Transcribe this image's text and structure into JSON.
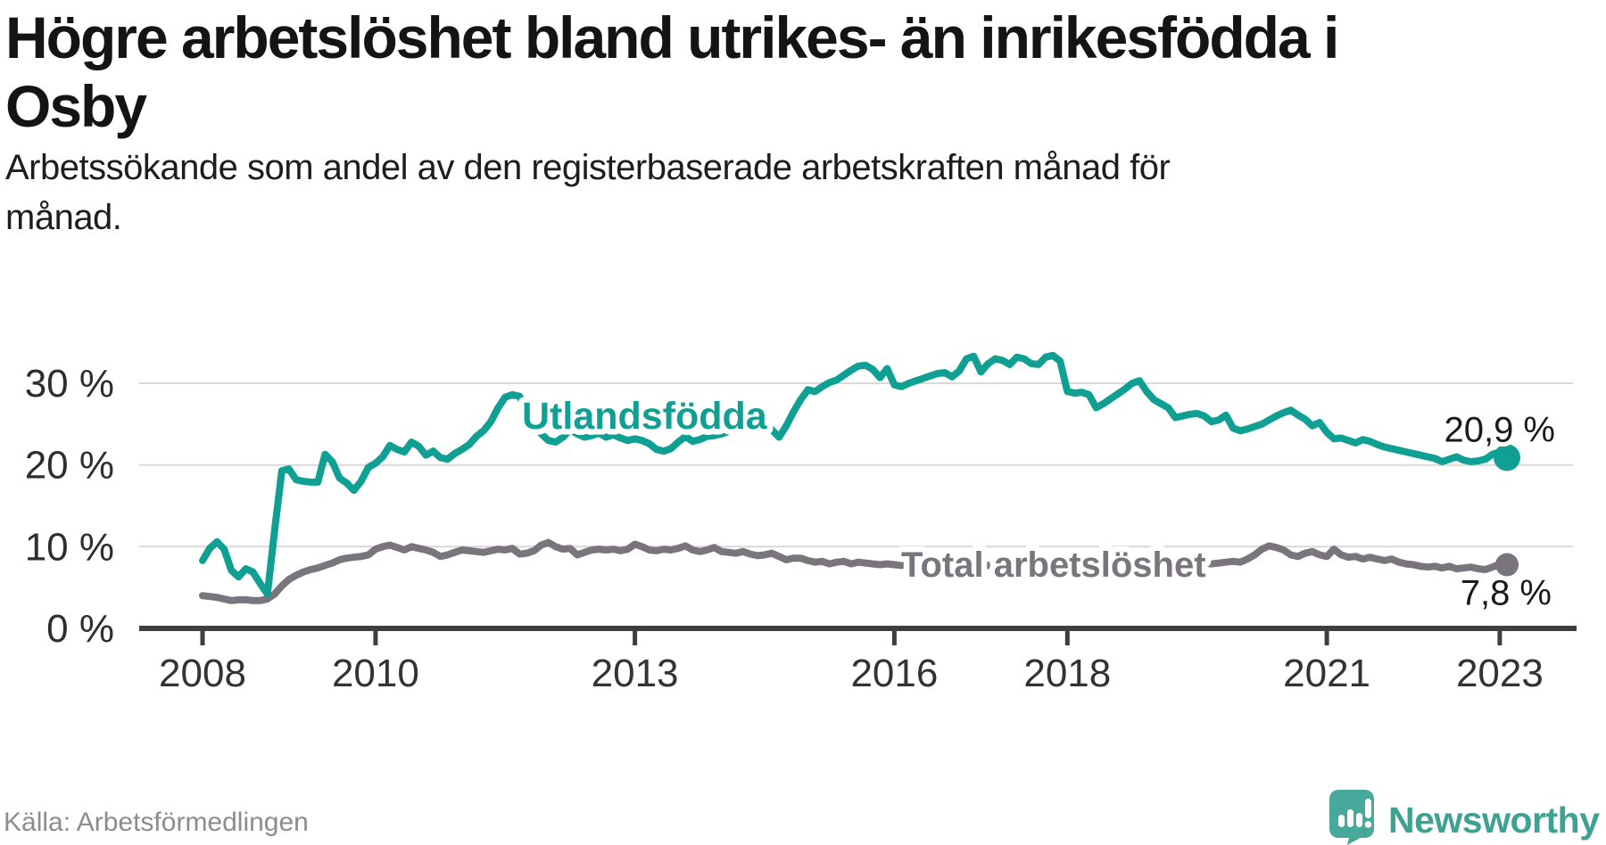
{
  "header": {
    "title_line1": "Högre arbetslöshet bland utrikes- än inrikesfödda i",
    "title_line2": "Osby",
    "subtitle_line1": "Arbetssökande som andel av den registerbaserade arbetskraften månad för",
    "subtitle_line2": "månad."
  },
  "footer": {
    "source": "Källa: Arbetsförmedlingen",
    "brand": "Newsworthy",
    "logo_icon": "bar-chart-exclamation-bubble"
  },
  "colors": {
    "teal": "#10A093",
    "gray": "#7A757C",
    "axis": "#3E3E3E",
    "grid": "#D9D9D9",
    "value_text": "#1A1A1A",
    "axis_text": "#333333",
    "muted": "#8C8C8C",
    "logo_teal": "#46A99B",
    "logo_tail": "#2E887B"
  },
  "chart_data": {
    "type": "line",
    "title": "Högre arbetslöshet bland utrikes- än inrikesfödda i Osby",
    "subtitle": "Arbetssökande som andel av den registerbaserade arbetskraften månad för månad.",
    "source": "Källa: Arbetsförmedlingen",
    "frequency": "monthly",
    "x_start": "2008-01",
    "x_end": "2023-02",
    "ylim": [
      0,
      34
    ],
    "grid": "horizontal-only",
    "legend": "inline-labels",
    "y_unit": "%",
    "y_ticks": [
      {
        "value": 0,
        "label": "0 %"
      },
      {
        "value": 10,
        "label": "10 %"
      },
      {
        "value": 20,
        "label": "20 %"
      },
      {
        "value": 30,
        "label": "30 %"
      }
    ],
    "x_ticks": [
      {
        "month_index": 0,
        "label": "2008"
      },
      {
        "month_index": 24,
        "label": "2010"
      },
      {
        "month_index": 60,
        "label": "2013"
      },
      {
        "month_index": 96,
        "label": "2016"
      },
      {
        "month_index": 120,
        "label": "2018"
      },
      {
        "month_index": 156,
        "label": "2021"
      },
      {
        "month_index": 180,
        "label": "2023"
      }
    ],
    "series": [
      {
        "name": "Total arbetslöshet",
        "color": "#7A757C",
        "end_label": "7,8 %",
        "end_value": 7.8,
        "values": [
          4.0,
          3.9,
          3.8,
          3.6,
          3.4,
          3.5,
          3.5,
          3.4,
          3.4,
          3.6,
          4.2,
          5.2,
          6.0,
          6.5,
          6.9,
          7.2,
          7.4,
          7.7,
          8.0,
          8.4,
          8.6,
          8.7,
          8.8,
          9.0,
          9.7,
          10.0,
          10.2,
          9.9,
          9.6,
          10.0,
          9.8,
          9.6,
          9.3,
          8.8,
          9.0,
          9.3,
          9.6,
          9.5,
          9.4,
          9.3,
          9.5,
          9.7,
          9.6,
          9.8,
          9.1,
          9.2,
          9.5,
          10.2,
          10.5,
          10.0,
          9.7,
          9.8,
          9.0,
          9.3,
          9.6,
          9.7,
          9.6,
          9.7,
          9.5,
          9.7,
          10.3,
          10.0,
          9.6,
          9.5,
          9.7,
          9.6,
          9.8,
          10.1,
          9.6,
          9.4,
          9.6,
          9.9,
          9.4,
          9.3,
          9.2,
          9.4,
          9.1,
          8.9,
          9.0,
          9.2,
          8.8,
          8.4,
          8.6,
          8.6,
          8.3,
          8.1,
          8.2,
          7.9,
          8.1,
          8.2,
          7.9,
          8.1,
          8.0,
          7.9,
          7.8,
          7.9,
          7.8,
          7.7,
          7.9,
          7.8,
          7.6,
          7.7,
          7.9,
          7.8,
          7.7,
          7.8,
          7.6,
          7.8,
          7.9,
          7.7,
          7.6,
          7.7,
          7.5,
          7.6,
          7.8,
          7.6,
          7.5,
          7.6,
          7.4,
          7.6,
          7.5,
          7.4,
          7.3,
          7.4,
          7.2,
          7.3,
          7.5,
          7.4,
          7.3,
          7.5,
          7.4,
          7.6,
          7.5,
          7.6,
          7.7,
          7.6,
          7.8,
          7.7,
          7.9,
          8.0,
          7.9,
          8.0,
          8.1,
          8.2,
          8.1,
          8.5,
          9.0,
          9.7,
          10.1,
          9.9,
          9.6,
          9.0,
          8.8,
          9.2,
          9.4,
          9.0,
          8.8,
          9.7,
          9.0,
          8.7,
          8.8,
          8.5,
          8.7,
          8.5,
          8.3,
          8.5,
          8.1,
          7.9,
          7.8,
          7.6,
          7.5,
          7.6,
          7.4,
          7.6,
          7.3,
          7.4,
          7.5,
          7.3,
          7.2,
          7.5,
          7.9,
          7.8
        ]
      },
      {
        "name": "Utlandsfödda",
        "color": "#10A093",
        "end_label": "20,9 %",
        "end_value": 20.9,
        "values": [
          8.3,
          9.8,
          10.6,
          9.7,
          7.1,
          6.3,
          7.3,
          6.9,
          5.5,
          4.2,
          12.0,
          19.3,
          19.5,
          18.2,
          18.0,
          17.9,
          17.9,
          21.3,
          20.4,
          18.4,
          17.8,
          16.9,
          18.0,
          19.7,
          20.2,
          21.0,
          22.4,
          21.9,
          21.6,
          22.8,
          22.3,
          21.2,
          21.7,
          20.9,
          20.7,
          21.4,
          21.9,
          22.5,
          23.5,
          24.2,
          25.3,
          27.0,
          28.3,
          28.6,
          28.4,
          26.5,
          25.0,
          23.8,
          23.0,
          22.8,
          23.4,
          24.3,
          23.8,
          23.4,
          23.6,
          23.9,
          23.4,
          23.7,
          23.3,
          23.0,
          23.2,
          23.0,
          22.6,
          21.9,
          21.7,
          22.0,
          22.8,
          23.5,
          22.9,
          23.1,
          23.5,
          23.6,
          23.8,
          24.1,
          24.4,
          24.7,
          25.1,
          25.4,
          25.2,
          24.3,
          23.4,
          24.8,
          26.5,
          28.0,
          29.2,
          29.0,
          29.6,
          30.1,
          30.4,
          31.0,
          31.6,
          32.1,
          32.2,
          31.7,
          30.7,
          31.8,
          29.8,
          29.6,
          30.0,
          30.3,
          30.6,
          30.9,
          31.2,
          31.3,
          30.8,
          31.5,
          33.0,
          33.3,
          31.4,
          32.4,
          33.0,
          32.8,
          32.3,
          33.2,
          33.0,
          32.4,
          32.3,
          33.2,
          33.4,
          32.7,
          29.0,
          28.8,
          28.9,
          28.6,
          27.0,
          27.5,
          28.1,
          28.7,
          29.3,
          30.0,
          30.3,
          29.0,
          28.0,
          27.5,
          27.0,
          25.8,
          26.0,
          26.2,
          26.3,
          26.0,
          25.3,
          25.5,
          26.1,
          24.5,
          24.2,
          24.4,
          24.7,
          25.0,
          25.5,
          26.0,
          26.4,
          26.7,
          26.1,
          25.6,
          24.8,
          25.2,
          24.0,
          23.2,
          23.3,
          23.0,
          22.7,
          23.1,
          22.9,
          22.5,
          22.2,
          22.0,
          21.8,
          21.6,
          21.4,
          21.2,
          21.0,
          20.8,
          20.4,
          20.7,
          21.0,
          20.6,
          20.4,
          20.5,
          20.7,
          21.3,
          21.6,
          20.9
        ]
      }
    ]
  }
}
